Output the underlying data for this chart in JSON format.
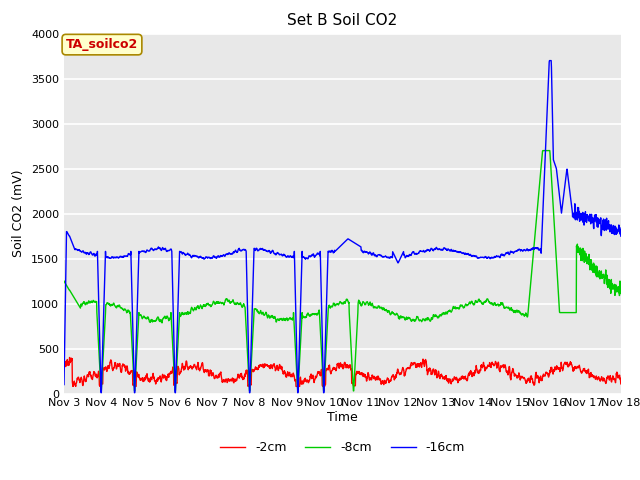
{
  "title": "Set B Soil CO2",
  "ylabel": "Soil CO2 (mV)",
  "xlabel": "Time",
  "ylim": [
    0,
    4000
  ],
  "yticks": [
    0,
    500,
    1000,
    1500,
    2000,
    2500,
    3000,
    3500,
    4000
  ],
  "xtick_labels": [
    "Nov 3",
    "Nov 4",
    "Nov 5",
    "Nov 6",
    "Nov 7",
    "Nov 8",
    "Nov 9",
    "Nov 10",
    "Nov 11",
    "Nov 12",
    "Nov 13",
    "Nov 14",
    "Nov 15",
    "Nov 16",
    "Nov 17",
    "Nov 18"
  ],
  "xtick_positions": [
    3,
    4,
    5,
    6,
    7,
    8,
    9,
    10,
    11,
    12,
    13,
    14,
    15,
    16,
    17,
    18
  ],
  "legend_entries": [
    "-2cm",
    "-8cm",
    "-16cm"
  ],
  "line_colors": [
    "#ff0000",
    "#00cc00",
    "#0000ff"
  ],
  "annotation_text": "TA_soilco2",
  "annotation_color": "#cc0000",
  "annotation_bg": "#ffffcc",
  "bg_color": "#e8e8e8",
  "grid_color": "#ffffff",
  "title_fontsize": 11,
  "axis_fontsize": 9,
  "tick_fontsize": 8
}
